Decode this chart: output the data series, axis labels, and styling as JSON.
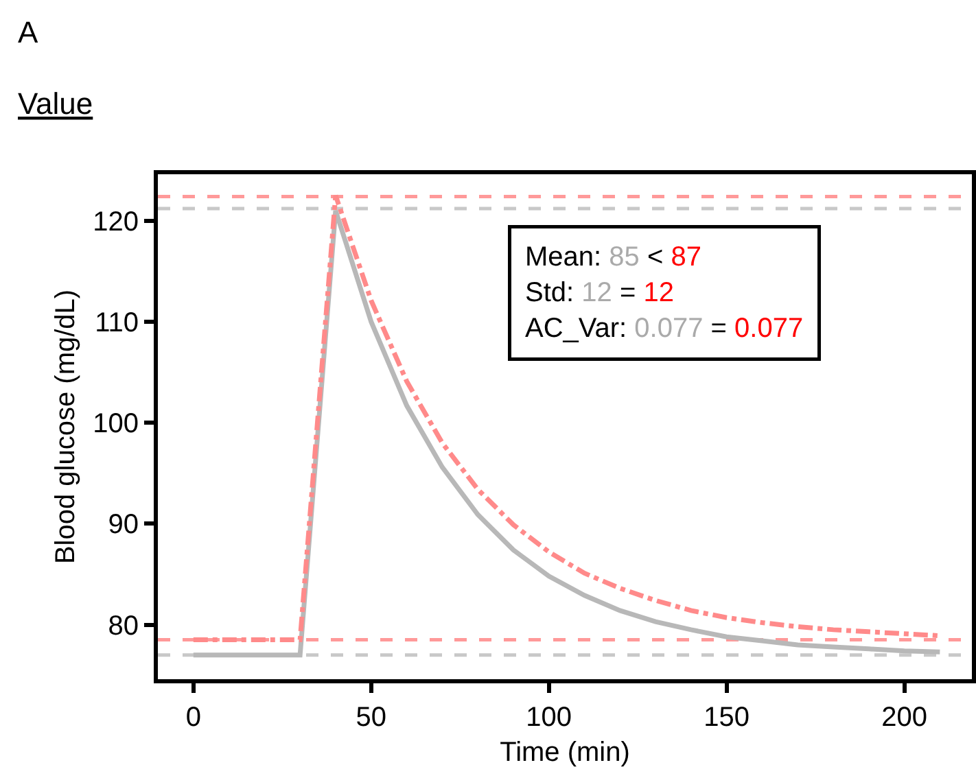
{
  "chart_data": {
    "type": "line",
    "title": "A",
    "subtitle": "Value",
    "xlabel": "Time (min)",
    "ylabel": "Blood glucose (mg/dL)",
    "x": [
      0,
      30,
      40,
      50,
      60,
      70,
      80,
      90,
      100,
      110,
      120,
      130,
      140,
      150,
      160,
      170,
      180,
      190,
      200,
      210
    ],
    "series": [
      {
        "color": "#b8b8b8",
        "line_style": "solid",
        "values": [
          77,
          77,
          121.0,
          110.0,
          101.7,
          95.6,
          90.9,
          87.4,
          84.8,
          82.9,
          81.4,
          80.3,
          79.5,
          78.8,
          78.4,
          78.0,
          77.8,
          77.6,
          77.4,
          77.3
        ]
      },
      {
        "color": "#ff8a8a",
        "line_style": "dashdot",
        "values": [
          78.5,
          78.5,
          122.5,
          112.1,
          104.1,
          98.0,
          93.4,
          89.9,
          87.2,
          85.1,
          83.6,
          82.4,
          81.4,
          80.7,
          80.2,
          79.8,
          79.5,
          79.3,
          79.1,
          78.9
        ]
      }
    ],
    "xlim": [
      -10,
      219
    ],
    "ylim": [
      74.6,
      124.6
    ],
    "xticks": [
      0,
      50,
      100,
      150,
      200
    ],
    "yticks": [
      80,
      90,
      100,
      110,
      120
    ],
    "ref_lines": [
      {
        "axis": "y",
        "value": 122.4,
        "color": "#ff9999",
        "line_style": "dashed"
      },
      {
        "axis": "y",
        "value": 121.2,
        "color": "#c8c8c8",
        "line_style": "dashed"
      },
      {
        "axis": "y",
        "value": 78.5,
        "color": "#ff9999",
        "line_style": "dashed"
      },
      {
        "axis": "y",
        "value": 77.0,
        "color": "#c8c8c8",
        "line_style": "dashed"
      }
    ],
    "annotations": [
      "Mean: 85 < 87",
      "Std: 12 = 12",
      "AC_Var: 0.077 = 0.077"
    ],
    "marker": "none"
  }
}
